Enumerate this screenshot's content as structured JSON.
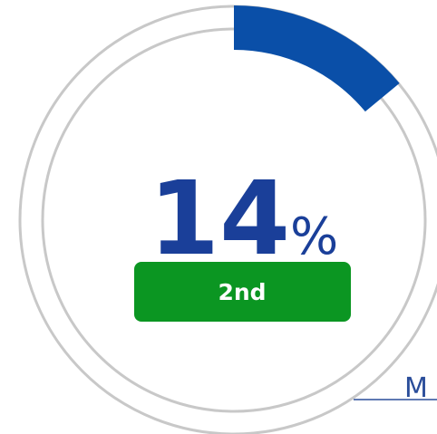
{
  "chart_data": {
    "type": "donut",
    "value": 14,
    "unit": "%",
    "max": 100,
    "color": "#0a4fa8",
    "track_color": "#c8c8c8",
    "badge": "2nd",
    "badge_color": "#0b9622"
  },
  "footer": {
    "text": "M"
  }
}
